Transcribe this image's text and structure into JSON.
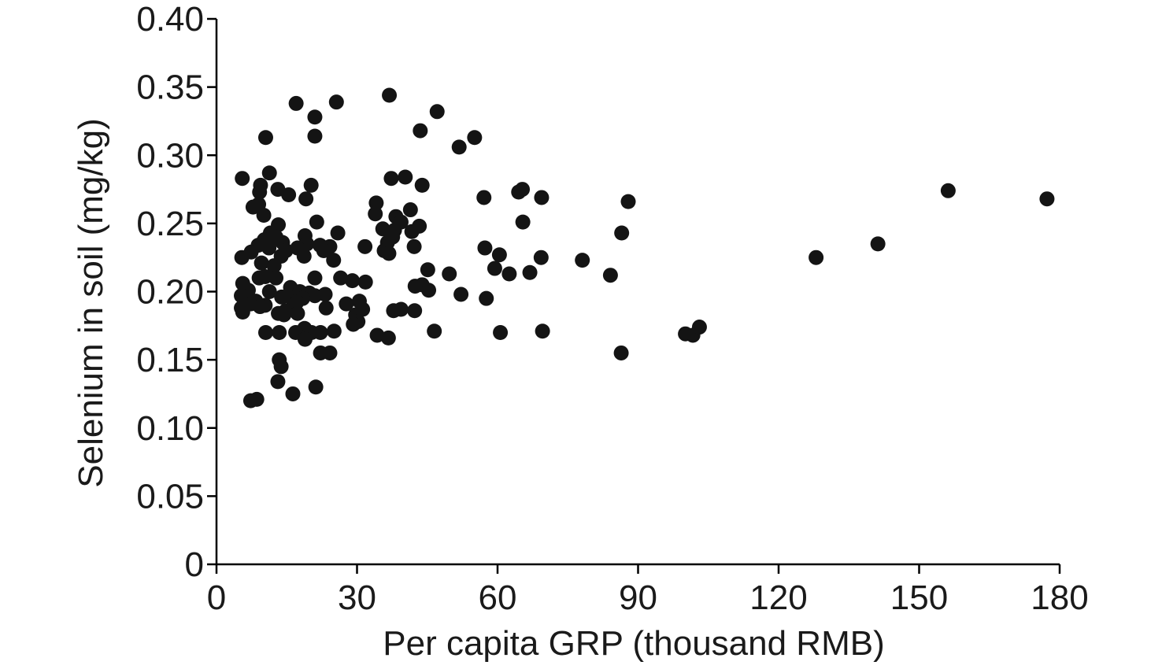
{
  "chart_data": {
    "type": "scatter",
    "xlabel": "Per capita GRP (thousand RMB)",
    "ylabel": "Selenium in soil (mg/kg)",
    "xlim": [
      0,
      180
    ],
    "ylim": [
      0,
      0.4
    ],
    "x_ticks": [
      0,
      30,
      60,
      90,
      120,
      150,
      180
    ],
    "x_tick_labels": [
      "0",
      "30",
      "60",
      "90",
      "120",
      "150",
      "180"
    ],
    "y_ticks": [
      0,
      0.05,
      0.1,
      0.15,
      0.2,
      0.25,
      0.3,
      0.35,
      0.4
    ],
    "y_tick_labels": [
      "0",
      "0.05",
      "0.10",
      "0.15",
      "0.20",
      "0.25",
      "0.30",
      "0.35",
      "0.40"
    ],
    "grid": false,
    "point_color": "#141414",
    "points": [
      [
        5.5,
        0.283
      ],
      [
        10.5,
        0.313
      ],
      [
        11.3,
        0.287
      ],
      [
        9.4,
        0.278
      ],
      [
        9.2,
        0.273
      ],
      [
        13.1,
        0.275
      ],
      [
        15.4,
        0.271
      ],
      [
        7.8,
        0.262
      ],
      [
        9.0,
        0.264
      ],
      [
        10.1,
        0.256
      ],
      [
        13.2,
        0.249
      ],
      [
        11.5,
        0.243
      ],
      [
        12.7,
        0.24
      ],
      [
        10.2,
        0.238
      ],
      [
        14.1,
        0.236
      ],
      [
        8.9,
        0.234
      ],
      [
        11.2,
        0.232
      ],
      [
        14.8,
        0.23
      ],
      [
        7.4,
        0.229
      ],
      [
        13.8,
        0.226
      ],
      [
        5.4,
        0.225
      ],
      [
        9.6,
        0.221
      ],
      [
        12.3,
        0.219
      ],
      [
        10.4,
        0.211
      ],
      [
        9.1,
        0.21
      ],
      [
        12.7,
        0.21
      ],
      [
        5.6,
        0.206
      ],
      [
        15.8,
        0.203
      ],
      [
        6.8,
        0.201
      ],
      [
        11.3,
        0.2
      ],
      [
        5.3,
        0.197
      ],
      [
        13.9,
        0.196
      ],
      [
        16.1,
        0.195
      ],
      [
        8.4,
        0.193
      ],
      [
        7.3,
        0.191
      ],
      [
        10.4,
        0.19
      ],
      [
        9.3,
        0.189
      ],
      [
        5.3,
        0.188
      ],
      [
        5.6,
        0.185
      ],
      [
        13.2,
        0.184
      ],
      [
        14.8,
        0.186
      ],
      [
        10.5,
        0.17
      ],
      [
        13.4,
        0.17
      ],
      [
        14.4,
        0.183
      ],
      [
        13.4,
        0.15
      ],
      [
        13.8,
        0.145
      ],
      [
        13.1,
        0.134
      ],
      [
        16.3,
        0.125
      ],
      [
        7.3,
        0.12
      ],
      [
        8.6,
        0.121
      ],
      [
        17.0,
        0.338
      ],
      [
        21.0,
        0.328
      ],
      [
        21.0,
        0.314
      ],
      [
        25.6,
        0.339
      ],
      [
        20.2,
        0.278
      ],
      [
        19.1,
        0.268
      ],
      [
        21.4,
        0.251
      ],
      [
        25.9,
        0.243
      ],
      [
        18.9,
        0.241
      ],
      [
        19.3,
        0.235
      ],
      [
        22.1,
        0.234
      ],
      [
        24.2,
        0.233
      ],
      [
        17.3,
        0.232
      ],
      [
        22.9,
        0.23
      ],
      [
        18.7,
        0.226
      ],
      [
        25.0,
        0.223
      ],
      [
        21.0,
        0.21
      ],
      [
        26.5,
        0.21
      ],
      [
        17.8,
        0.2
      ],
      [
        19.8,
        0.199
      ],
      [
        23.2,
        0.198
      ],
      [
        21.0,
        0.197
      ],
      [
        18.4,
        0.195
      ],
      [
        17.1,
        0.192
      ],
      [
        23.4,
        0.188
      ],
      [
        17.3,
        0.184
      ],
      [
        18.8,
        0.173
      ],
      [
        20.3,
        0.17
      ],
      [
        16.9,
        0.17
      ],
      [
        25.1,
        0.171
      ],
      [
        22.2,
        0.17
      ],
      [
        18.9,
        0.165
      ],
      [
        22.2,
        0.155
      ],
      [
        24.2,
        0.155
      ],
      [
        21.2,
        0.13
      ],
      [
        36.9,
        0.344
      ],
      [
        47.1,
        0.332
      ],
      [
        43.5,
        0.318
      ],
      [
        55.1,
        0.313
      ],
      [
        51.8,
        0.306
      ],
      [
        37.3,
        0.283
      ],
      [
        40.3,
        0.284
      ],
      [
        43.9,
        0.278
      ],
      [
        34.1,
        0.265
      ],
      [
        33.9,
        0.257
      ],
      [
        38.3,
        0.255
      ],
      [
        41.4,
        0.26
      ],
      [
        39.4,
        0.251
      ],
      [
        35.5,
        0.246
      ],
      [
        43.3,
        0.248
      ],
      [
        38.0,
        0.245
      ],
      [
        41.7,
        0.244
      ],
      [
        37.6,
        0.24
      ],
      [
        36.5,
        0.236
      ],
      [
        31.7,
        0.233
      ],
      [
        35.8,
        0.23
      ],
      [
        42.2,
        0.233
      ],
      [
        36.8,
        0.228
      ],
      [
        45.1,
        0.216
      ],
      [
        43.9,
        0.205
      ],
      [
        42.4,
        0.204
      ],
      [
        49.7,
        0.213
      ],
      [
        29.0,
        0.208
      ],
      [
        31.8,
        0.207
      ],
      [
        45.3,
        0.201
      ],
      [
        30.5,
        0.193
      ],
      [
        27.7,
        0.191
      ],
      [
        29.7,
        0.183
      ],
      [
        31.2,
        0.187
      ],
      [
        30.2,
        0.178
      ],
      [
        29.2,
        0.176
      ],
      [
        37.8,
        0.186
      ],
      [
        39.4,
        0.187
      ],
      [
        42.3,
        0.186
      ],
      [
        34.3,
        0.168
      ],
      [
        36.7,
        0.166
      ],
      [
        46.5,
        0.171
      ],
      [
        52.2,
        0.198
      ],
      [
        57.6,
        0.195
      ],
      [
        60.4,
        0.227
      ],
      [
        57.3,
        0.232
      ],
      [
        57.1,
        0.269
      ],
      [
        64.5,
        0.273
      ],
      [
        65.3,
        0.275
      ],
      [
        65.4,
        0.251
      ],
      [
        69.4,
        0.269
      ],
      [
        69.3,
        0.225
      ],
      [
        59.4,
        0.217
      ],
      [
        62.5,
        0.213
      ],
      [
        66.9,
        0.214
      ],
      [
        60.6,
        0.17
      ],
      [
        69.6,
        0.171
      ],
      [
        78.1,
        0.223
      ],
      [
        84.1,
        0.212
      ],
      [
        86.5,
        0.243
      ],
      [
        87.9,
        0.266
      ],
      [
        86.4,
        0.155
      ],
      [
        100.1,
        0.169
      ],
      [
        101.7,
        0.168
      ],
      [
        103.1,
        0.174
      ],
      [
        128.0,
        0.225
      ],
      [
        141.2,
        0.235
      ],
      [
        156.2,
        0.274
      ],
      [
        177.3,
        0.268
      ]
    ]
  }
}
